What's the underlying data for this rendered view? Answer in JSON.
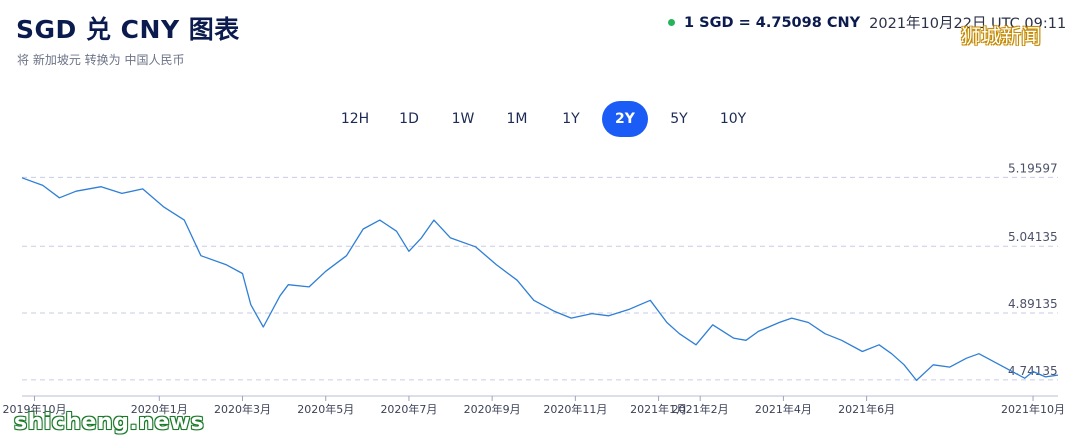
{
  "header": {
    "title": "SGD 兑 CNY 图表",
    "subtitle": "将 新加坡元 转换为 中国人民币",
    "rate_text": "1 SGD = 4.75098 CNY",
    "timestamp": "2021年10月22日 UTC 09:11",
    "status_color": "#26b35a"
  },
  "range_tabs": {
    "items": [
      "12H",
      "1D",
      "1W",
      "1M",
      "1Y",
      "2Y",
      "5Y",
      "10Y"
    ],
    "active": "2Y",
    "active_color": "#1a5cf5"
  },
  "watermarks": {
    "top_right": "狮城新闻",
    "bottom_left": "shicheng.news"
  },
  "chart_data": {
    "type": "line",
    "line_color": "#2f7fd6",
    "grid": "dashed-horizontal",
    "ylim": [
      4.705,
      5.235
    ],
    "y_ticks": [
      5.19597,
      5.04135,
      4.89135,
      4.74135
    ],
    "y_tick_labels": [
      "5.19597",
      "5.04135",
      "4.89135",
      "4.74135"
    ],
    "x_tick_labels": [
      "2019年10月",
      "2020年1月",
      "2020年3月",
      "2020年5月",
      "2020年7月",
      "2020年9月",
      "2020年11月",
      "2021年1月",
      "2021年2月",
      "2021年4月",
      "2021年6月",
      "2021年10月"
    ],
    "x_tick_months": [
      0,
      3,
      5,
      7,
      9,
      11,
      13,
      15,
      16,
      18,
      20,
      24
    ],
    "x_month_span": [
      -0.3,
      24.6
    ],
    "series": [
      {
        "months": [
          -0.3,
          0.2,
          0.6,
          1.0,
          1.6,
          2.1,
          2.6,
          3.1,
          3.6,
          4.0,
          4.6,
          5.0,
          5.2,
          5.5,
          5.9,
          6.1,
          6.6,
          7.0,
          7.5,
          7.9,
          8.3,
          8.7,
          9.0,
          9.3,
          9.6,
          10.0,
          10.6,
          11.1,
          11.6,
          12.0,
          12.5,
          12.9,
          13.4,
          13.8,
          14.3,
          14.8,
          15.2,
          15.5,
          15.9,
          16.3,
          16.8,
          17.1,
          17.4,
          17.9,
          18.2,
          18.6,
          19.0,
          19.4,
          19.9,
          20.3,
          20.6,
          20.9,
          21.2,
          21.6,
          22.0,
          22.4,
          22.7,
          22.9,
          23.3,
          23.8,
          24.0,
          24.3,
          24.6
        ],
        "values": [
          5.195,
          5.178,
          5.15,
          5.165,
          5.175,
          5.16,
          5.17,
          5.13,
          5.1,
          5.02,
          5.0,
          4.98,
          4.91,
          4.86,
          4.93,
          4.955,
          4.95,
          4.985,
          5.02,
          5.08,
          5.1,
          5.075,
          5.03,
          5.06,
          5.1,
          5.06,
          5.04,
          5.0,
          4.965,
          4.92,
          4.895,
          4.88,
          4.89,
          4.885,
          4.9,
          4.92,
          4.87,
          4.845,
          4.82,
          4.865,
          4.835,
          4.83,
          4.85,
          4.87,
          4.88,
          4.87,
          4.845,
          4.83,
          4.805,
          4.82,
          4.8,
          4.775,
          4.74,
          4.775,
          4.77,
          4.79,
          4.8,
          4.79,
          4.77,
          4.745,
          4.76,
          4.748,
          4.752
        ]
      }
    ]
  }
}
